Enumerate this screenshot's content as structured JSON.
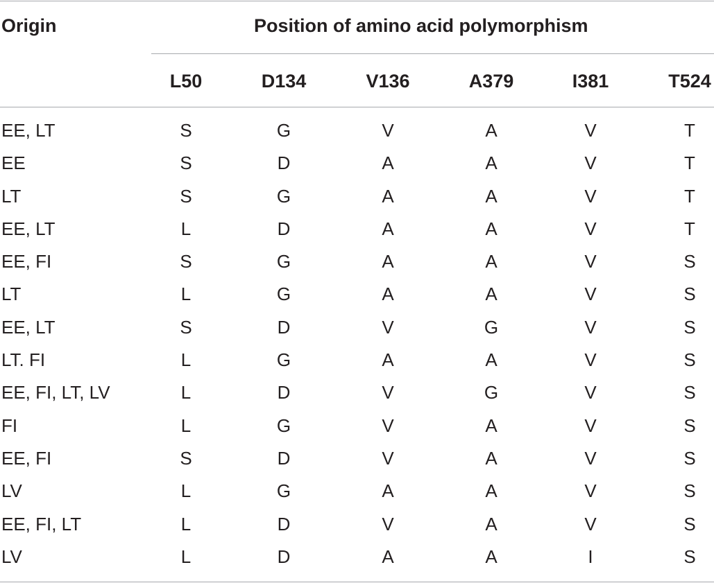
{
  "table": {
    "origin_header": "Origin",
    "group_header": "Position of amino acid polymorphism",
    "columns": [
      "L50",
      "D134",
      "V136",
      "A379",
      "I381",
      "T524"
    ],
    "rows": [
      {
        "origin": "EE, LT",
        "values": [
          "S",
          "G",
          "V",
          "A",
          "V",
          "T"
        ]
      },
      {
        "origin": "EE",
        "values": [
          "S",
          "D",
          "A",
          "A",
          "V",
          "T"
        ]
      },
      {
        "origin": "LT",
        "values": [
          "S",
          "G",
          "A",
          "A",
          "V",
          "T"
        ]
      },
      {
        "origin": "EE, LT",
        "values": [
          "L",
          "D",
          "A",
          "A",
          "V",
          "T"
        ]
      },
      {
        "origin": "EE, FI",
        "values": [
          "S",
          "G",
          "A",
          "A",
          "V",
          "S"
        ]
      },
      {
        "origin": "LT",
        "values": [
          "L",
          "G",
          "A",
          "A",
          "V",
          "S"
        ]
      },
      {
        "origin": "EE, LT",
        "values": [
          "S",
          "D",
          "V",
          "G",
          "V",
          "S"
        ]
      },
      {
        "origin": "LT. FI",
        "values": [
          "L",
          "G",
          "A",
          "A",
          "V",
          "S"
        ]
      },
      {
        "origin": "EE, FI, LT, LV",
        "values": [
          "L",
          "D",
          "V",
          "G",
          "V",
          "S"
        ]
      },
      {
        "origin": "FI",
        "values": [
          "L",
          "G",
          "V",
          "A",
          "V",
          "S"
        ]
      },
      {
        "origin": "EE, FI",
        "values": [
          "S",
          "D",
          "V",
          "A",
          "V",
          "S"
        ]
      },
      {
        "origin": "LV",
        "values": [
          "L",
          "G",
          "A",
          "A",
          "V",
          "S"
        ]
      },
      {
        "origin": "EE, FI, LT",
        "values": [
          "L",
          "D",
          "V",
          "A",
          "V",
          "S"
        ]
      },
      {
        "origin": "LV",
        "values": [
          "L",
          "D",
          "A",
          "A",
          "I",
          "S"
        ]
      }
    ]
  }
}
